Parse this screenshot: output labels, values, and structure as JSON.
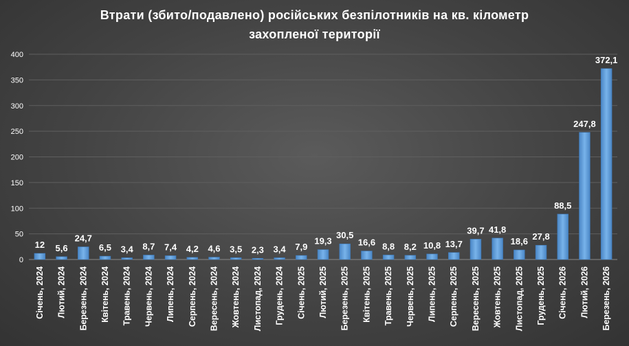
{
  "chart_data": {
    "type": "bar",
    "title_line1": "Втрати (збито/подавлено) російських безпілотників на кв. кілометр",
    "title_line2": "захопленої території",
    "categories": [
      "Січень, 2024",
      "Лютий, 2024",
      "Березень, 2024",
      "Квітень, 2024",
      "Травень, 2024",
      "Червень, 2024",
      "Липень, 2024",
      "Серпень, 2024",
      "Вересень, 2024",
      "Жовтень, 2024",
      "Листопад, 2024",
      "Грудень, 2024",
      "Січень, 2025",
      "Лютий, 2025",
      "Березень, 2025",
      "Квітень, 2025",
      "Травень, 2025",
      "Червень, 2025",
      "Липень, 2025",
      "Серпень, 2025",
      "Вересень, 2025",
      "Жовтень, 2025",
      "Листопад, 2025",
      "Грудень, 2025",
      "Січень, 2026",
      "Лютий, 2026",
      "Березень, 2026"
    ],
    "values": [
      12,
      5.6,
      24.7,
      6.5,
      3.4,
      8.7,
      7.4,
      4.2,
      4.6,
      3.5,
      2.3,
      3.4,
      7.9,
      19.3,
      30.5,
      16.6,
      8.8,
      8.2,
      10.8,
      13.7,
      39.7,
      41.8,
      18.6,
      27.8,
      88.5,
      247.8,
      372.1
    ],
    "data_labels": [
      "12",
      "5,6",
      "24,7",
      "6,5",
      "3,4",
      "8,7",
      "7,4",
      "4,2",
      "4,6",
      "3,5",
      "2,3",
      "3,4",
      "7,9",
      "19,3",
      "30,5",
      "16,6",
      "8,8",
      "8,2",
      "10,8",
      "13,7",
      "39,7",
      "41,8",
      "18,6",
      "27,8",
      "88,5",
      "247,8",
      "372,1"
    ],
    "yticks": [
      0,
      50,
      100,
      150,
      200,
      250,
      300,
      350,
      400
    ],
    "ylim": [
      0,
      400
    ],
    "xlabel": "",
    "ylabel": "",
    "grid": true,
    "legend": "none",
    "bar_color": "#5b9bd5",
    "background_color": "#404040"
  }
}
